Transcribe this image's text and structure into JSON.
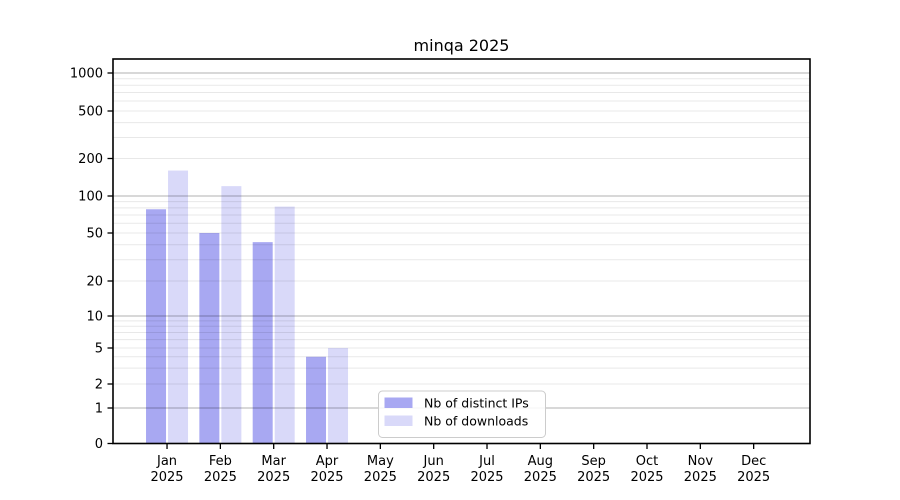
{
  "title": "minqa 2025",
  "chart_data": {
    "type": "bar",
    "title": "minqa 2025",
    "x_tick_year": "2025",
    "categories": [
      "Jan",
      "Feb",
      "Mar",
      "Apr",
      "May",
      "Jun",
      "Jul",
      "Aug",
      "Sep",
      "Oct",
      "Nov",
      "Dec"
    ],
    "series": [
      {
        "name": "Nb of distinct IPs",
        "color": "#a8a8f2",
        "values": [
          78,
          50,
          42,
          4,
          0,
          0,
          0,
          0,
          0,
          0,
          0,
          0
        ]
      },
      {
        "name": "Nb of downloads",
        "color": "#d9d9f9",
        "values": [
          160,
          120,
          82,
          5,
          0,
          0,
          0,
          0,
          0,
          0,
          0,
          0
        ]
      }
    ],
    "y_ticks": [
      0,
      1,
      2,
      5,
      10,
      20,
      50,
      100,
      200,
      500,
      1000
    ],
    "y_scale": "symlog",
    "ylim": [
      0,
      1300
    ],
    "xlabel": "",
    "ylabel": "",
    "grid": "on",
    "legend_position": "lower center"
  },
  "colors": {
    "major_grid": "#b3b3b3",
    "minor_grid": "#e8e8e8",
    "axis": "#000000",
    "legend_border": "#cccccc"
  }
}
